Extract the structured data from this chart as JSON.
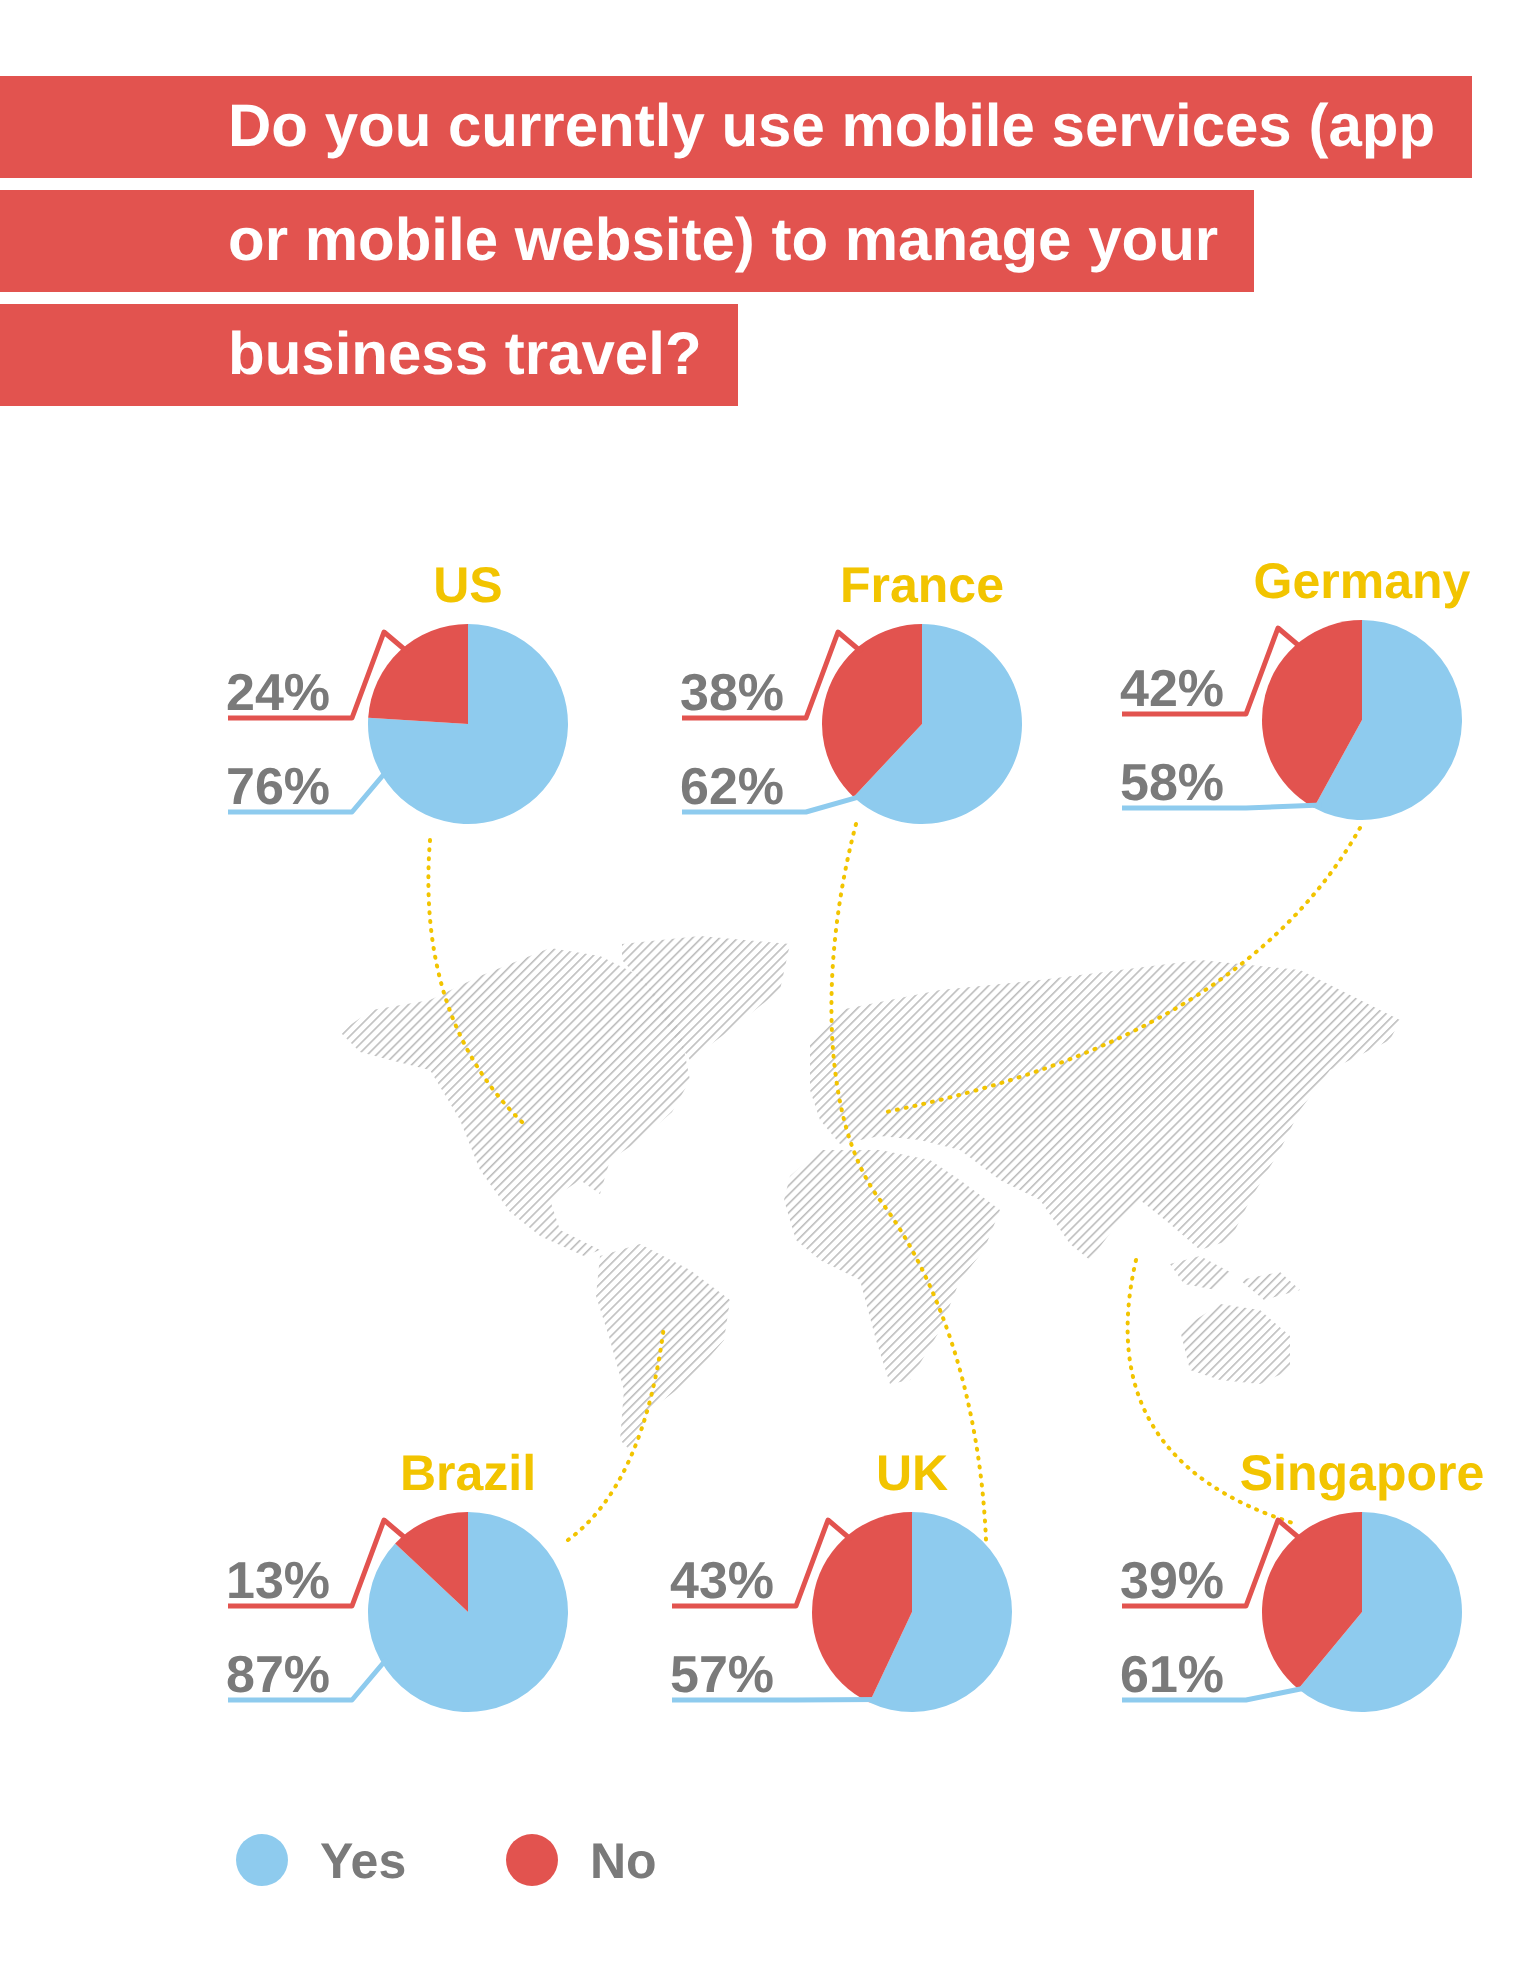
{
  "chart_data": [
    {
      "type": "other",
      "title": "Do you currently use mobile services (app or mobile website) to manage your business travel?"
    },
    {
      "type": "pie",
      "title": "US",
      "categories": [
        null,
        null
      ],
      "values": [
        76,
        24
      ],
      "colors": [
        "#8ecbee",
        "#e2534f"
      ],
      "value_labels": [
        "76%",
        "24%"
      ]
    },
    {
      "type": "pie",
      "title": "France",
      "categories": [
        null,
        null
      ],
      "values": [
        62,
        38
      ],
      "colors": [
        "#8ecbee",
        "#e2534f"
      ],
      "value_labels": [
        "62%",
        "38%"
      ]
    },
    {
      "type": "pie",
      "title": "Germany",
      "categories": [
        null,
        null
      ],
      "values": [
        58,
        42
      ],
      "colors": [
        "#8ecbee",
        "#e2534f"
      ],
      "value_labels": [
        "58%",
        "42%"
      ]
    },
    {
      "type": "pie",
      "title": "Brazil",
      "categories": [
        "Yes",
        "No"
      ],
      "values": [
        87,
        13
      ],
      "colors": [
        "#8ecbee",
        "#e2534f"
      ],
      "value_labels": [
        "87%",
        "13%"
      ],
      "legend": "bottom"
    },
    {
      "type": "pie",
      "title": "UK",
      "categories": [
        null,
        null
      ],
      "values": [
        57,
        43
      ],
      "colors": [
        "#8ecbee",
        "#e2534f"
      ],
      "value_labels": [
        "57%",
        "43%"
      ]
    },
    {
      "type": "pie",
      "title": "Singapore",
      "categories": [
        null,
        null
      ],
      "values": [
        61,
        39
      ],
      "colors": [
        "#8ecbee",
        "#e2534f"
      ],
      "value_labels": [
        "61%",
        "39%"
      ]
    }
  ]
}
